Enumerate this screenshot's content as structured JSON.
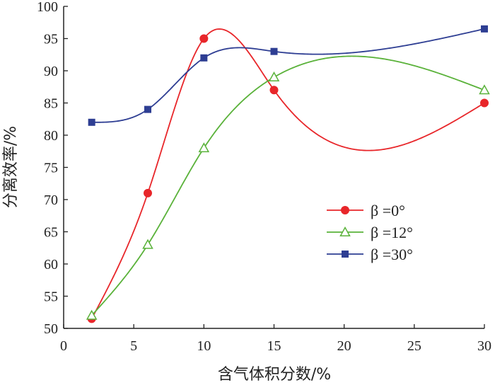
{
  "chart_data": {
    "type": "line",
    "xlabel": "含气体积分数/%",
    "ylabel": "分离效率/%",
    "xlim": [
      0,
      30
    ],
    "ylim": [
      50,
      100
    ],
    "xticks": [
      0,
      5,
      10,
      15,
      20,
      25,
      30
    ],
    "yticks": [
      50,
      55,
      60,
      65,
      70,
      75,
      80,
      85,
      90,
      95,
      100
    ],
    "grid": false,
    "legend_position": "right-middle",
    "series": [
      {
        "name": "β =0°",
        "color": "#e8262a",
        "marker": "circle",
        "x": [
          2,
          6,
          10,
          15,
          30
        ],
        "y": [
          51.5,
          71,
          95,
          87,
          85
        ]
      },
      {
        "name": "β =12°",
        "color": "#5ab23a",
        "marker": "triangle-open",
        "x": [
          2,
          6,
          10,
          15,
          30
        ],
        "y": [
          52,
          63,
          78,
          89,
          87
        ]
      },
      {
        "name": "β =30°",
        "color": "#2e3e93",
        "marker": "square",
        "x": [
          2,
          6,
          10,
          15,
          30
        ],
        "y": [
          82,
          84,
          92,
          93,
          96.5
        ]
      }
    ]
  }
}
